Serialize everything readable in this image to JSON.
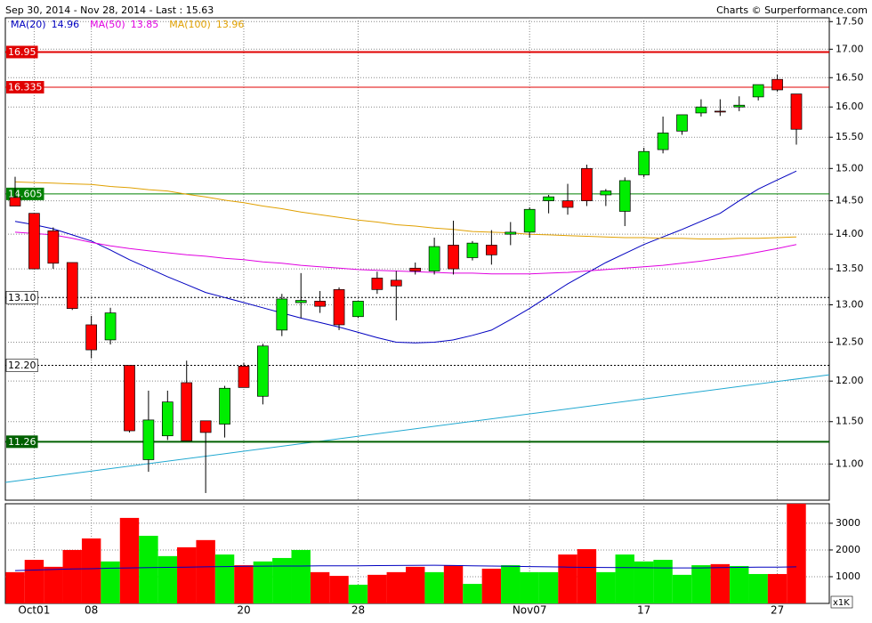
{
  "chart_data": {
    "type": "candlestick",
    "title": "Sep 30, 2014 - Nov 28, 2014 - Last : 15.63",
    "source": "Charts © Surperformance.com",
    "log_scale": true,
    "grid": true,
    "colors": {
      "up": "#00ee00",
      "down": "#ff0000"
    },
    "categories": [
      null,
      "Oct01",
      null,
      null,
      "08",
      null,
      null,
      null,
      null,
      null,
      null,
      null,
      "20",
      null,
      null,
      null,
      null,
      null,
      "28",
      null,
      null,
      null,
      null,
      null,
      null,
      null,
      null,
      "Nov07",
      null,
      null,
      null,
      null,
      null,
      "17",
      null,
      null,
      null,
      null,
      null,
      null,
      "27",
      null
    ],
    "open": [
      14.55,
      14.31,
      14.05,
      13.59,
      12.73,
      12.53,
      12.2,
      11.05,
      11.33,
      11.98,
      11.51,
      11.47,
      12.19,
      11.81,
      12.66,
      13.03,
      13.05,
      13.21,
      12.84,
      13.37,
      13.34,
      13.51,
      13.47,
      13.84,
      13.66,
      13.84,
      14.0,
      14.03,
      14.5,
      14.5,
      15.0,
      14.59,
      14.34,
      14.9,
      15.3,
      15.6,
      15.9,
      15.93,
      16.0,
      16.17,
      16.47,
      16.22
    ],
    "high": [
      14.87,
      14.31,
      14.1,
      13.59,
      12.85,
      12.96,
      12.2,
      11.88,
      11.88,
      12.26,
      11.51,
      11.94,
      12.23,
      12.48,
      13.15,
      13.44,
      13.19,
      13.24,
      13.06,
      13.46,
      13.47,
      13.59,
      13.95,
      14.2,
      13.9,
      14.06,
      14.18,
      14.4,
      14.59,
      14.76,
      15.06,
      14.68,
      14.86,
      15.33,
      15.84,
      15.87,
      16.13,
      16.13,
      16.18,
      16.38,
      16.55,
      16.22
    ],
    "low": [
      14.42,
      13.5,
      13.5,
      12.93,
      12.29,
      12.47,
      11.37,
      10.91,
      11.28,
      11.27,
      10.67,
      11.31,
      11.92,
      11.71,
      12.58,
      12.82,
      12.89,
      12.66,
      12.82,
      13.15,
      12.79,
      13.42,
      13.42,
      13.42,
      13.62,
      13.56,
      13.84,
      13.95,
      14.31,
      14.29,
      14.42,
      14.42,
      14.12,
      14.86,
      15.24,
      15.54,
      15.84,
      15.85,
      15.93,
      16.11,
      16.26,
      15.38
    ],
    "close": [
      14.42,
      13.5,
      13.58,
      12.95,
      12.4,
      12.89,
      11.39,
      11.52,
      11.74,
      11.27,
      11.37,
      11.91,
      11.92,
      12.45,
      13.08,
      13.06,
      12.98,
      12.73,
      13.05,
      13.21,
      13.26,
      13.47,
      13.82,
      13.5,
      13.87,
      13.7,
      14.03,
      14.37,
      14.56,
      14.4,
      14.5,
      14.65,
      14.81,
      15.27,
      15.57,
      15.87,
      16.0,
      15.92,
      16.03,
      16.38,
      16.29,
      15.63
    ],
    "ylim": [
      10.59,
      17.57
    ],
    "yticks": [
      {
        "value": 17.5,
        "label": "17.50"
      },
      {
        "value": 17,
        "label": "17.00"
      },
      {
        "value": 16.5,
        "label": "16.50"
      },
      {
        "value": 16,
        "label": "16.00"
      },
      {
        "value": 15.5,
        "label": "15.50"
      },
      {
        "value": 15,
        "label": "15.00"
      },
      {
        "value": 14.5,
        "label": "14.50"
      },
      {
        "value": 14,
        "label": "14.00"
      },
      {
        "value": 13.5,
        "label": "13.50"
      },
      {
        "value": 13,
        "label": "13.00"
      },
      {
        "value": 12.5,
        "label": "12.50"
      },
      {
        "value": 12,
        "label": "12.00"
      },
      {
        "value": 11.5,
        "label": "11.50"
      },
      {
        "value": 11,
        "label": "11.00"
      }
    ],
    "series": [
      {
        "name": "MA(20)",
        "color": "#0000c0",
        "last": 14.96,
        "values": [
          14.19,
          14.14,
          14.08,
          13.99,
          13.9,
          13.77,
          13.63,
          13.51,
          13.39,
          13.28,
          13.17,
          13.1,
          13.03,
          12.96,
          12.89,
          12.82,
          12.76,
          12.7,
          12.63,
          12.56,
          12.5,
          12.49,
          12.5,
          12.53,
          12.59,
          12.66,
          12.8,
          12.95,
          13.12,
          13.29,
          13.44,
          13.59,
          13.72,
          13.85,
          13.96,
          14.07,
          14.19,
          14.31,
          14.5,
          14.68,
          14.82,
          14.96
        ]
      },
      {
        "name": "MA(50)",
        "color": "#e000e0",
        "last": 13.85,
        "values": [
          14.03,
          14.01,
          13.99,
          13.94,
          13.88,
          13.83,
          13.79,
          13.76,
          13.73,
          13.7,
          13.68,
          13.65,
          13.63,
          13.6,
          13.58,
          13.55,
          13.53,
          13.51,
          13.49,
          13.48,
          13.47,
          13.46,
          13.45,
          13.44,
          13.44,
          13.43,
          13.43,
          13.43,
          13.44,
          13.45,
          13.47,
          13.49,
          13.51,
          13.53,
          13.55,
          13.58,
          13.61,
          13.65,
          13.69,
          13.74,
          13.79,
          13.85
        ]
      },
      {
        "name": "MA(100)",
        "color": "#e0a000",
        "last": 13.96,
        "values": [
          14.79,
          14.78,
          14.77,
          14.76,
          14.75,
          14.72,
          14.7,
          14.67,
          14.65,
          14.6,
          14.56,
          14.51,
          14.47,
          14.42,
          14.38,
          14.33,
          14.29,
          14.25,
          14.21,
          14.18,
          14.14,
          14.12,
          14.09,
          14.07,
          14.04,
          14.03,
          14.02,
          14.0,
          13.99,
          13.98,
          13.97,
          13.96,
          13.95,
          13.95,
          13.94,
          13.94,
          13.93,
          13.93,
          13.94,
          13.94,
          13.95,
          13.96
        ]
      }
    ],
    "levels": [
      {
        "value": 16.95,
        "color": "#e00000",
        "text_color": "#ffffff",
        "width": 2
      },
      {
        "value": 16.335,
        "color": "#e00000",
        "text_color": "#ffffff",
        "width": 1
      },
      {
        "value": 14.605,
        "color": "#008000",
        "text_color": "#ffffff",
        "width": 1
      },
      {
        "value": 13.1,
        "label": "13.10",
        "color": "#000000",
        "text_color": "#000000",
        "width": 1,
        "dashed": true
      },
      {
        "value": 12.2,
        "label": "12.20",
        "color": "#000000",
        "text_color": "#000000",
        "width": 1,
        "dashed": true
      },
      {
        "value": 11.26,
        "color": "#006000",
        "text_color": "#ffffff",
        "width": 2
      }
    ],
    "trendline": {
      "color": "#20a8d0",
      "values": [
        10.79,
        12.08
      ]
    },
    "volume": {
      "values": [
        1170,
        1630,
        1370,
        2000,
        2430,
        1570,
        3200,
        2530,
        1770,
        2100,
        2370,
        1830,
        1430,
        1570,
        1700,
        2000,
        1170,
        1030,
        700,
        1070,
        1170,
        1370,
        1170,
        1430,
        730,
        1300,
        1430,
        1170,
        1170,
        1830,
        2030,
        1170,
        1830,
        1570,
        1630,
        1070,
        1430,
        1470,
        1400,
        1100,
        1100,
        3730
      ],
      "ylim": [
        0,
        3730
      ],
      "yticks": [
        1000,
        2000,
        3000
      ],
      "unit_label": "x1K",
      "ma": {
        "color": "#0000c0",
        "values": [
          1230,
          1250,
          1270,
          1290,
          1300,
          1320,
          1330,
          1340,
          1350,
          1360,
          1370,
          1380,
          1390,
          1395,
          1400,
          1400,
          1405,
          1410,
          1410,
          1415,
          1420,
          1425,
          1430,
          1420,
          1410,
          1400,
          1390,
          1380,
          1370,
          1360,
          1350,
          1345,
          1340,
          1335,
          1330,
          1330,
          1330,
          1340,
          1350,
          1355,
          1360,
          1370
        ]
      }
    }
  }
}
